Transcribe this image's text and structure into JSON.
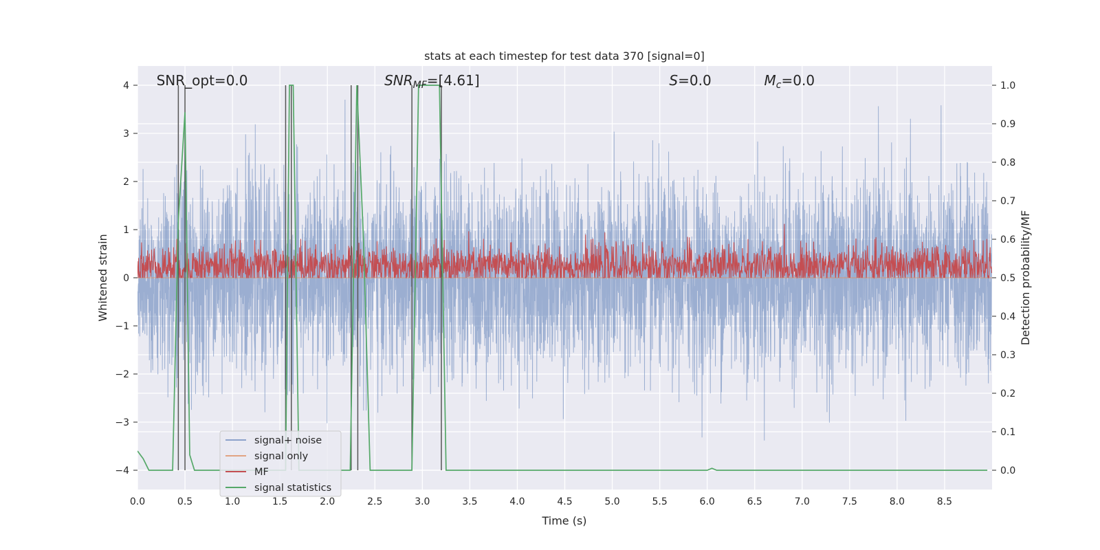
{
  "chart_data": {
    "type": "line",
    "title": "stats at each timestep for test data 370 [signal=0]",
    "xlabel": "Time (s)",
    "ylabel_left": "Whitened strain",
    "ylabel_right": "Detection probability/MF",
    "xlim": [
      0,
      9.0
    ],
    "ylim_left": [
      -4.4,
      4.4
    ],
    "ylim_right": [
      -0.05,
      1.05
    ],
    "x_ticks": [
      0.0,
      0.5,
      1.0,
      1.5,
      2.0,
      2.5,
      3.0,
      3.5,
      4.0,
      4.5,
      5.0,
      5.5,
      6.0,
      6.5,
      7.0,
      7.5,
      8.0,
      8.5
    ],
    "x_tick_labels": [
      "0.0",
      "0.5",
      "1.0",
      "1.5",
      "2.0",
      "2.5",
      "3.0",
      "3.5",
      "4.0",
      "4.5",
      "5.0",
      "5.5",
      "6.0",
      "6.5",
      "7.0",
      "7.5",
      "8.0",
      "8.5"
    ],
    "y_left_ticks": [
      -4,
      -3,
      -2,
      -1,
      0,
      1,
      2,
      3,
      4
    ],
    "y_left_tick_labels": [
      "−4",
      "−3",
      "−2",
      "−1",
      "0",
      "1",
      "2",
      "3",
      "4"
    ],
    "y_right_ticks": [
      0.0,
      0.1,
      0.2,
      0.3,
      0.4,
      0.5,
      0.6,
      0.7,
      0.8,
      0.9,
      1.0
    ],
    "y_right_tick_labels": [
      "0.0",
      "0.1",
      "0.2",
      "0.3",
      "0.4",
      "0.5",
      "0.6",
      "0.7",
      "0.8",
      "0.9",
      "1.0"
    ],
    "grid": true,
    "legend_position": "lower-left",
    "annotations": [
      {
        "text": "SNR_opt=0.0",
        "x": 0.2,
        "y": 4.0,
        "style": "normal"
      },
      {
        "text_base": "SNR",
        "text_sub": "MF",
        "text_rest": "=[4.61]",
        "x": 2.6,
        "y": 4.0,
        "style": "italic-sub"
      },
      {
        "text_base": "S",
        "text_sub": "",
        "text_rest": "=0.0",
        "x": 5.6,
        "y": 4.0,
        "style": "italic-sub"
      },
      {
        "text_base": "M",
        "text_sub": "c",
        "text_rest": "=0.0",
        "x": 6.6,
        "y": 4.0,
        "style": "italic-sub"
      }
    ],
    "marker_lines_x": [
      0.43,
      0.5,
      1.56,
      1.62,
      2.25,
      2.32,
      2.89,
      3.2
    ],
    "series": [
      {
        "name": "signal+ noise",
        "color": "#4c72b0",
        "opacity": 0.5,
        "axis": "left",
        "description": "whitened noise ~ N(0,1), range approx -3.8 to 3.6 over 0-9 s",
        "sample_rate": 512,
        "std": 1.0
      },
      {
        "name": "signal only",
        "color": "#dd8452",
        "opacity": 0.6,
        "axis": "left",
        "values_constant": 0.0
      },
      {
        "name": "MF",
        "color": "#c44e52",
        "axis": "right",
        "description": "matched-filter output fluctuating around 0.53 (range ~0.5-0.63)",
        "center": 0.53,
        "spread": 0.05
      },
      {
        "name": "signal statistics",
        "color": "#55a868",
        "axis": "right",
        "x": [
          0.0,
          0.06,
          0.12,
          0.37,
          0.43,
          0.5,
          0.55,
          0.6,
          1.56,
          1.6,
          1.64,
          1.7,
          2.24,
          2.31,
          2.38,
          2.45,
          2.89,
          2.96,
          3.18,
          3.25,
          6.0,
          6.05,
          6.1,
          8.95
        ],
        "y": [
          0.05,
          0.03,
          0.0,
          0.0,
          0.65,
          0.93,
          0.04,
          0.0,
          0.0,
          1.0,
          1.0,
          0.0,
          0.0,
          1.0,
          0.6,
          0.0,
          0.0,
          1.0,
          1.0,
          0.0,
          0.0,
          0.005,
          0.0,
          0.0
        ]
      }
    ]
  },
  "colors": {
    "plot_background": "#eaeaf2",
    "grid": "#ffffff",
    "marker_line": "#555555"
  }
}
